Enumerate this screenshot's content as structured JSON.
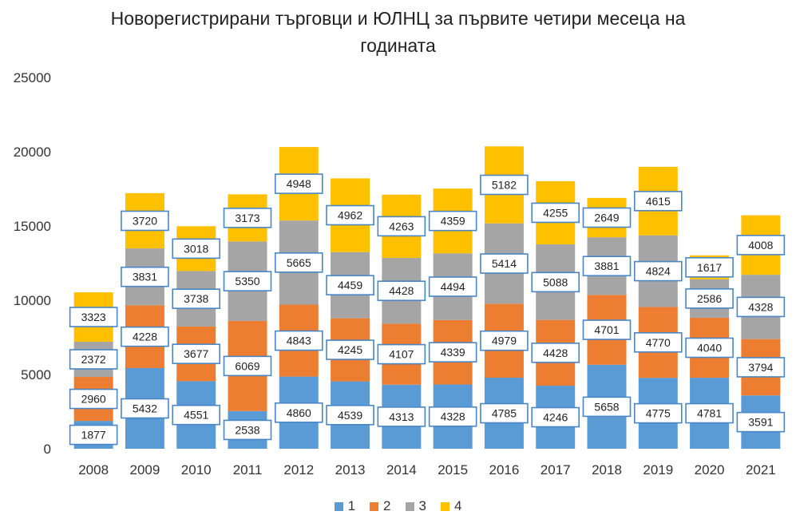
{
  "chart_data": {
    "type": "bar",
    "stacked": true,
    "title_lines": [
      "Новорегистрирани търговци и ЮЛНЦ за първите четири месеца на",
      "годината"
    ],
    "categories": [
      "2008",
      "2009",
      "2010",
      "2011",
      "2012",
      "2013",
      "2014",
      "2015",
      "2016",
      "2017",
      "2018",
      "2019",
      "2020",
      "2021"
    ],
    "ylim": [
      0,
      25000
    ],
    "yticks": [
      "0",
      "5000",
      "10000",
      "15000",
      "20000",
      "25000"
    ],
    "yticks_values": [
      0,
      5000,
      10000,
      15000,
      20000,
      25000
    ],
    "legend_position": "bottom",
    "grid": false,
    "series": [
      {
        "name": "1",
        "color": "#5b9bd5",
        "values": [
          1877,
          5432,
          4551,
          2538,
          4860,
          4539,
          4313,
          4328,
          4785,
          4246,
          5658,
          4775,
          4781,
          3591
        ]
      },
      {
        "name": "2",
        "color": "#ed7d31",
        "values": [
          2960,
          4228,
          3677,
          6069,
          4843,
          4245,
          4107,
          4339,
          4979,
          4428,
          4701,
          4770,
          4040,
          3794
        ]
      },
      {
        "name": "3",
        "color": "#a5a5a5",
        "values": [
          2372,
          3831,
          3738,
          5350,
          5665,
          4459,
          4428,
          4494,
          5414,
          5088,
          3881,
          4824,
          2586,
          4328
        ]
      },
      {
        "name": "4",
        "color": "#ffc000",
        "values": [
          3323,
          3720,
          3018,
          3173,
          4948,
          4962,
          4263,
          4359,
          5182,
          4255,
          2649,
          4615,
          1617,
          4008
        ]
      }
    ]
  }
}
